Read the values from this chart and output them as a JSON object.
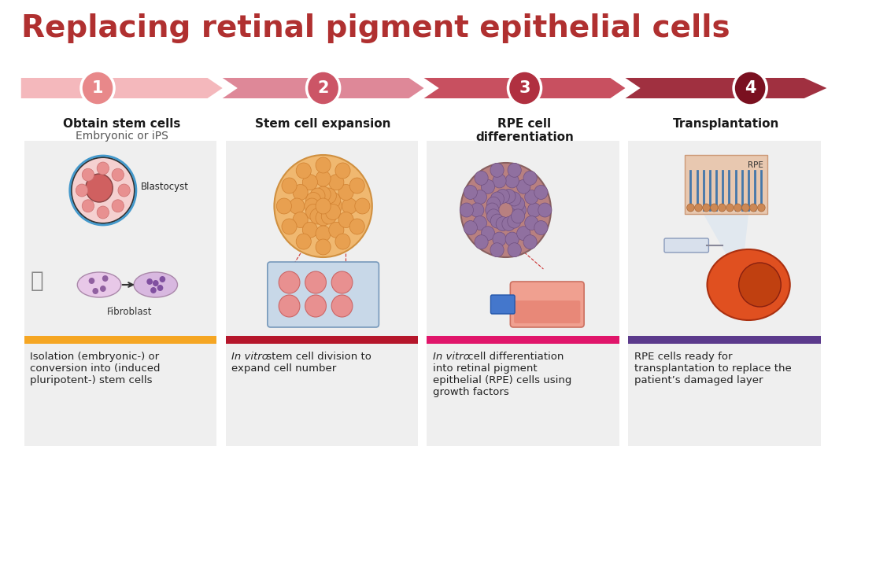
{
  "title": "Replacing retinal pigment epithelial cells",
  "title_color": "#b03030",
  "title_fontsize": 28,
  "bg_color": "#ffffff",
  "steps": [
    {
      "number": "1",
      "circle_color": "#e8888a",
      "label_bold": "Obtain stem cells",
      "label_sub": "Embryonic or iPS",
      "bar_color": "#f5a623",
      "desc_parts": [
        {
          "text": "Isolation (embryonic-) or\nconversion into (induced\npluripotent-) stem cells",
          "italic": false
        }
      ]
    },
    {
      "number": "2",
      "circle_color": "#cc5566",
      "label_bold": "Stem cell expansion",
      "label_sub": "",
      "bar_color": "#b5162b",
      "desc_parts": [
        {
          "text": "In vitro",
          "italic": true
        },
        {
          "text": " stem cell division to\nexpand cell number",
          "italic": false
        }
      ]
    },
    {
      "number": "3",
      "circle_color": "#b03040",
      "label_bold": "RPE cell\ndifferentiation",
      "label_sub": "",
      "bar_color": "#e0156a",
      "desc_parts": [
        {
          "text": "In vitro",
          "italic": true
        },
        {
          "text": " cell differentiation\ninto retinal pigment\nepithelial (RPE) cells using\ngrowth factors",
          "italic": false
        }
      ]
    },
    {
      "number": "4",
      "circle_color": "#7a1020",
      "label_bold": "Transplantation",
      "label_sub": "",
      "bar_color": "#5b3a8c",
      "desc_parts": [
        {
          "text": "RPE cells ready for\ntransplantation to replace the\npatient’s damaged layer",
          "italic": false
        }
      ]
    }
  ],
  "arrow_colors": [
    "#f4b8bc",
    "#de8898",
    "#c85060",
    "#a03040"
  ],
  "panel_bg": "#efefef"
}
